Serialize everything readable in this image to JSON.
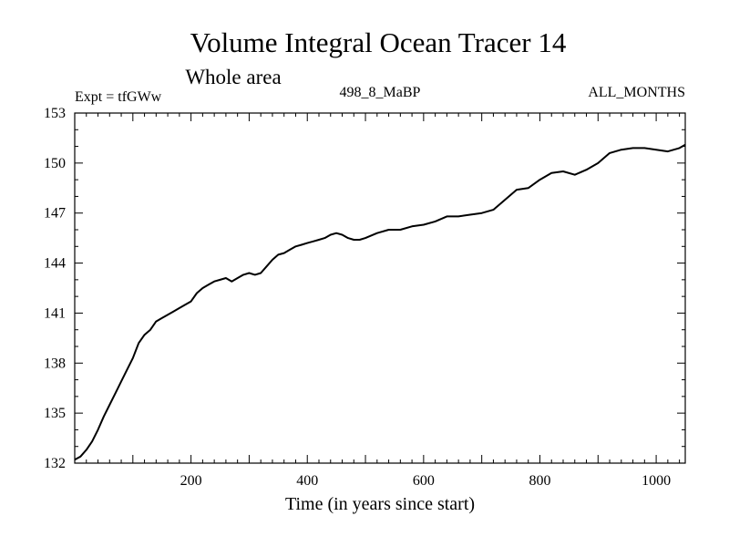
{
  "chart_data": {
    "type": "line",
    "title": "Volume Integral Ocean Tracer 14",
    "subtitle": "Whole area",
    "header_left": "Expt = tfGWw",
    "header_center": "498_8_MaBP",
    "header_right": "ALL_MONTHS",
    "xlabel": "Time (in years since start)",
    "ylabel": "",
    "xlim": [
      0,
      1050
    ],
    "ylim": [
      132,
      153
    ],
    "xticks_labeled": [
      200,
      400,
      600,
      800,
      1000
    ],
    "yticks_labeled": [
      132,
      135,
      138,
      141,
      144,
      147,
      150,
      153
    ],
    "grid": false,
    "colors": {
      "line": "#000000",
      "axes": "#000000",
      "background": "#ffffff"
    },
    "series": [
      {
        "x": [
          0,
          10,
          20,
          30,
          40,
          50,
          60,
          70,
          80,
          90,
          100,
          110,
          120,
          130,
          140,
          150,
          160,
          170,
          180,
          190,
          200,
          210,
          220,
          230,
          240,
          250,
          260,
          270,
          280,
          290,
          300,
          310,
          320,
          330,
          340,
          350,
          360,
          370,
          380,
          390,
          400,
          410,
          420,
          430,
          440,
          450,
          460,
          470,
          480,
          490,
          500,
          520,
          540,
          560,
          580,
          600,
          620,
          640,
          660,
          680,
          700,
          720,
          740,
          760,
          780,
          800,
          820,
          840,
          860,
          880,
          900,
          920,
          940,
          960,
          980,
          1000,
          1020,
          1040,
          1050
        ],
        "y": [
          132.2,
          132.4,
          132.8,
          133.3,
          134.0,
          134.8,
          135.5,
          136.2,
          136.9,
          137.6,
          138.3,
          139.2,
          139.7,
          140.0,
          140.5,
          140.7,
          140.9,
          141.1,
          141.3,
          141.5,
          141.7,
          142.2,
          142.5,
          142.7,
          142.9,
          143.0,
          143.1,
          142.9,
          143.1,
          143.3,
          143.4,
          143.3,
          143.4,
          143.8,
          144.2,
          144.5,
          144.6,
          144.8,
          145.0,
          145.1,
          145.2,
          145.3,
          145.4,
          145.5,
          145.7,
          145.8,
          145.7,
          145.5,
          145.4,
          145.4,
          145.5,
          145.8,
          146.0,
          146.0,
          146.2,
          146.3,
          146.5,
          146.8,
          146.8,
          146.9,
          147.0,
          147.2,
          147.8,
          148.4,
          148.5,
          149.0,
          149.4,
          149.5,
          149.3,
          149.6,
          150.0,
          150.6,
          150.8,
          150.9,
          150.9,
          150.8,
          150.7,
          150.9,
          151.1
        ]
      }
    ]
  }
}
